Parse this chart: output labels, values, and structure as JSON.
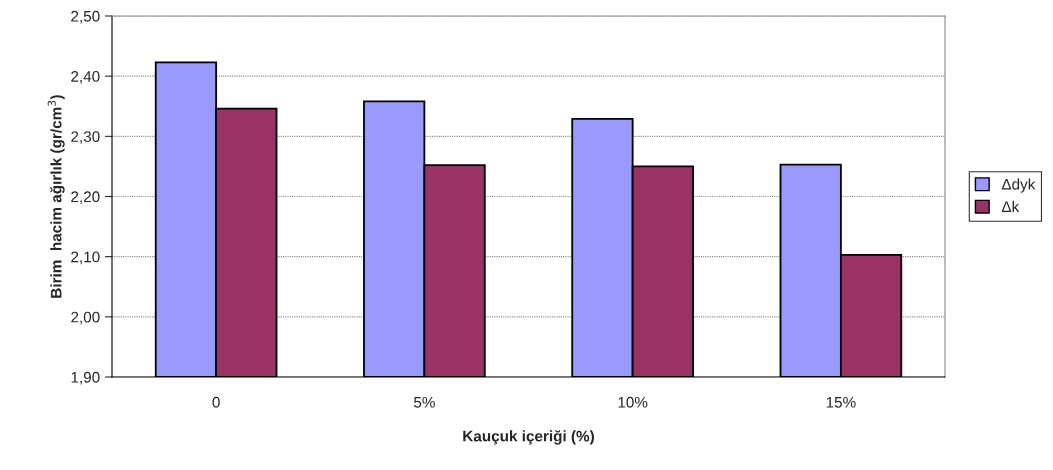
{
  "chart_data": {
    "type": "bar",
    "xlabel": "Kauçuk içeriği (%)",
    "ylabel": "Birim  hacim ağırlık (gr/cm$^{3}$)",
    "categories": [
      "0",
      "5%",
      "10%",
      "15%"
    ],
    "series": [
      {
        "name": "Δdyk",
        "color": "#9999ff",
        "values": [
          2.423,
          2.358,
          2.329,
          2.253
        ]
      },
      {
        "name": "Δk",
        "color": "#993366",
        "values": [
          2.346,
          2.252,
          2.25,
          2.103
        ]
      }
    ],
    "ylim": [
      1.9,
      2.5
    ],
    "yticks": [
      {
        "value": 1.9,
        "label": "1,90"
      },
      {
        "value": 2.0,
        "label": "2,00"
      },
      {
        "value": 2.1,
        "label": "2,10"
      },
      {
        "value": 2.2,
        "label": "2,20"
      },
      {
        "value": 2.3,
        "label": "2,30"
      },
      {
        "value": 2.4,
        "label": "2,40"
      },
      {
        "value": 2.5,
        "label": "2,50"
      }
    ],
    "grid": "y",
    "legend": "right"
  }
}
